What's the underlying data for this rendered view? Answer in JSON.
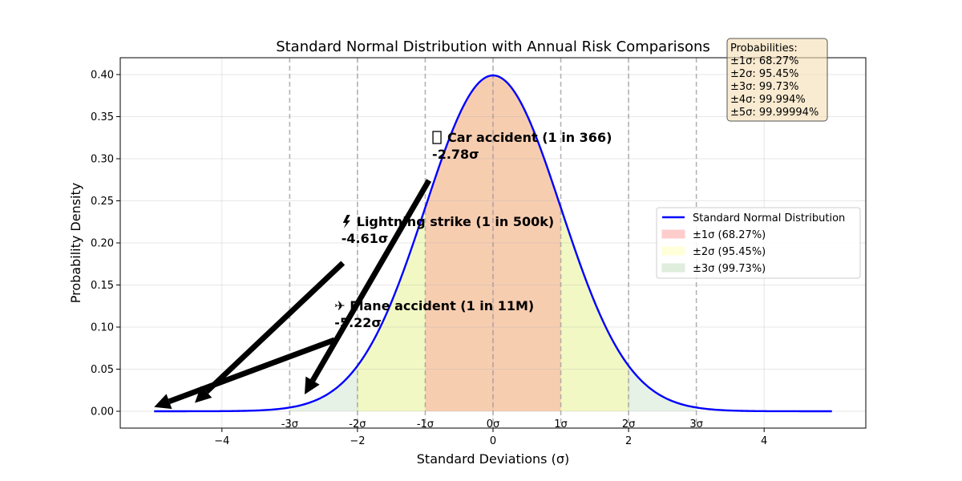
{
  "chart_data": {
    "type": "line",
    "title": "Standard Normal Distribution with Annual Risk Comparisons",
    "xlabel": "Standard Deviations (σ)",
    "ylabel": "Probability Density",
    "xlim": [
      -5.5,
      5.5
    ],
    "ylim": [
      -0.02,
      0.42
    ],
    "x_ticks": [
      -4,
      -2,
      0,
      2,
      4
    ],
    "x_tick_labels": [
      "−4",
      "−2",
      "0",
      "2",
      "4"
    ],
    "y_ticks": [
      0.0,
      0.05,
      0.1,
      0.15,
      0.2,
      0.25,
      0.3,
      0.35,
      0.4
    ],
    "y_tick_labels": [
      "0.00",
      "0.05",
      "0.10",
      "0.15",
      "0.20",
      "0.25",
      "0.30",
      "0.35",
      "0.40"
    ],
    "grid": true,
    "curve": {
      "name": "Standard Normal Distribution",
      "color": "#0000ff",
      "x_range": [
        -5,
        5
      ],
      "mean": 0,
      "std": 1
    },
    "sigma_lines": [
      {
        "x": -3,
        "label": "-3σ"
      },
      {
        "x": -2,
        "label": "-2σ"
      },
      {
        "x": -1,
        "label": "-1σ"
      },
      {
        "x": 0,
        "label": "0σ"
      },
      {
        "x": 1,
        "label": "1σ"
      },
      {
        "x": 2,
        "label": "2σ"
      },
      {
        "x": 3,
        "label": "3σ"
      }
    ],
    "bands": [
      {
        "name": "±1σ (68.27%)",
        "from": -1,
        "to": 1,
        "color": "#ff9999",
        "alpha": 0.45
      },
      {
        "name": "±2σ (95.45%)",
        "from": -2,
        "to": 2,
        "color": "#ffff99",
        "alpha": 0.45
      },
      {
        "name": "±3σ (99.73%)",
        "from": -3,
        "to": 3,
        "color": "#99cc99",
        "alpha": 0.25
      }
    ],
    "annotations": [
      {
        "icon": "car-icon",
        "line1": "Car accident (1 in 366)",
        "line2": "-2.78σ",
        "point": [
          -2.78,
          0.02
        ],
        "text_pos": [
          -0.78,
          0.32
        ]
      },
      {
        "icon": "lightning-icon",
        "line1": "Lightning strike (1 in 500k)",
        "line2": "-4.61σ",
        "point": [
          -4.4,
          0.01
        ],
        "text_pos": [
          -2.12,
          0.22
        ]
      },
      {
        "icon": "plane-icon",
        "line1": "Plane accident (1 in 11M)",
        "line2": "-5.22σ",
        "point": [
          -5.0,
          0.005
        ],
        "text_pos": [
          -2.22,
          0.12
        ]
      }
    ],
    "legend": {
      "placement": "center-right",
      "entries": [
        {
          "label": "Standard Normal Distribution",
          "kind": "line",
          "color": "#0000ff"
        },
        {
          "label": "±1σ (68.27%)",
          "kind": "patch",
          "color": "#ffcccc"
        },
        {
          "label": "±2σ (95.45%)",
          "kind": "patch",
          "color": "#ffffd9"
        },
        {
          "label": "±3σ (99.73%)",
          "kind": "patch",
          "color": "#dfeedd"
        }
      ]
    },
    "probabilities_box": {
      "lines": [
        "Probabilities:",
        "±1σ: 68.27%",
        "±2σ: 95.45%",
        "±3σ: 99.73%",
        "±4σ: 99.994%",
        "±5σ: 99.99994%"
      ],
      "background": "#f5deb3"
    }
  }
}
